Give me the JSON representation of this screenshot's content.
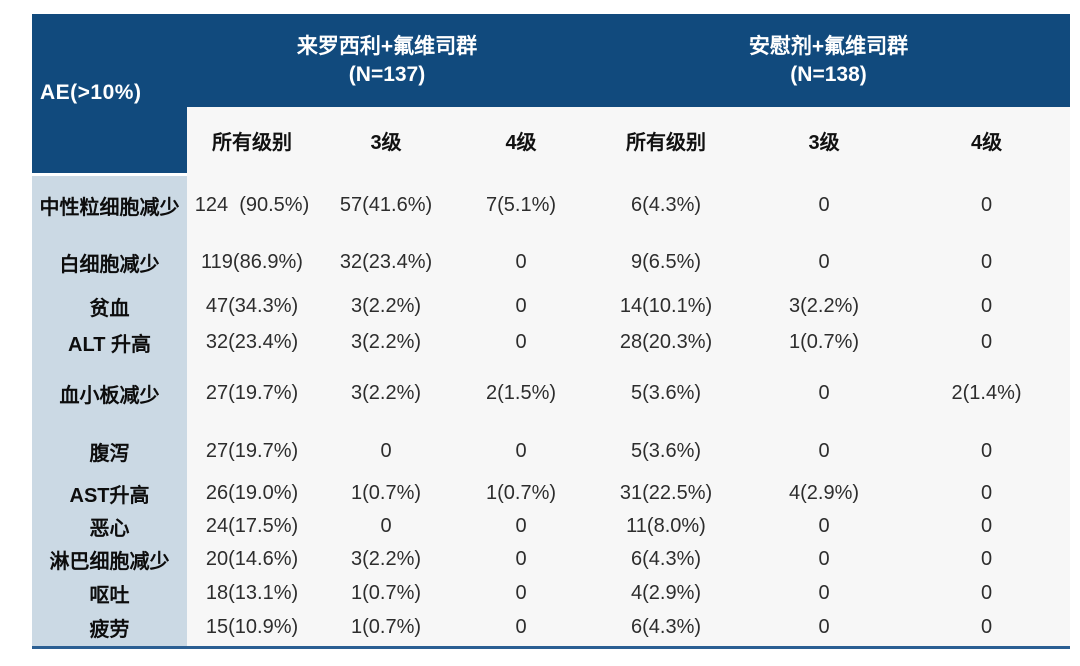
{
  "colors": {
    "header_navy": "#114A7D",
    "label_column_blue": "#CBD9E4",
    "panel_offwhite": "#F7F7F7",
    "bottom_rule_blue": "#2B5F93",
    "header_text": "#FFFFFF",
    "body_text": "#2D2D2D"
  },
  "table": {
    "corner_header": "AE(>10%)",
    "groups": [
      {
        "line1": "来罗西利+氟维司群",
        "line2": "(N=137)"
      },
      {
        "line1": "安慰剂+氟维司群",
        "line2": "(N=138)"
      }
    ],
    "sub_headers": [
      "所有级别",
      "3级",
      "4级",
      "所有级别",
      "3级",
      "4级"
    ],
    "rows": [
      {
        "label": "中性粒细胞减少",
        "values": [
          "124  (90.5%)",
          "57(41.6%)",
          "7(5.1%)",
          "6(4.3%)",
          "0",
          "0"
        ]
      },
      {
        "label": "白细胞减少",
        "values": [
          "119(86.9%)",
          "32(23.4%)",
          "0",
          "9(6.5%)",
          "0",
          "0"
        ]
      },
      {
        "label": "贫血",
        "values": [
          "47(34.3%)",
          "3(2.2%)",
          "0",
          "14(10.1%)",
          "3(2.2%)",
          "0"
        ]
      },
      {
        "label": "ALT 升高",
        "values": [
          "32(23.4%)",
          "3(2.2%)",
          "0",
          "28(20.3%)",
          "1(0.7%)",
          "0"
        ]
      },
      {
        "label": "血小板减少",
        "values": [
          "27(19.7%)",
          "3(2.2%)",
          "2(1.5%)",
          "5(3.6%)",
          "0",
          "2(1.4%)"
        ]
      },
      {
        "label": "腹泻",
        "values": [
          "27(19.7%)",
          "0",
          "0",
          "5(3.6%)",
          "0",
          "0"
        ]
      },
      {
        "label": "AST升高",
        "values": [
          "26(19.0%)",
          "1(0.7%)",
          "1(0.7%)",
          "31(22.5%)",
          "4(2.9%)",
          "0"
        ]
      },
      {
        "label": "恶心",
        "values": [
          "24(17.5%)",
          "0",
          "0",
          "11(8.0%)",
          "0",
          "0"
        ]
      },
      {
        "label": "淋巴细胞减少",
        "values": [
          "20(14.6%)",
          "3(2.2%)",
          "0",
          "6(4.3%)",
          "0",
          "0"
        ]
      },
      {
        "label": "呕吐",
        "values": [
          "18(13.1%)",
          "1(0.7%)",
          "0",
          "4(2.9%)",
          "0",
          "0"
        ]
      },
      {
        "label": "疲劳",
        "values": [
          "15(10.9%)",
          "1(0.7%)",
          "0",
          "6(4.3%)",
          "0",
          "0"
        ]
      }
    ]
  }
}
